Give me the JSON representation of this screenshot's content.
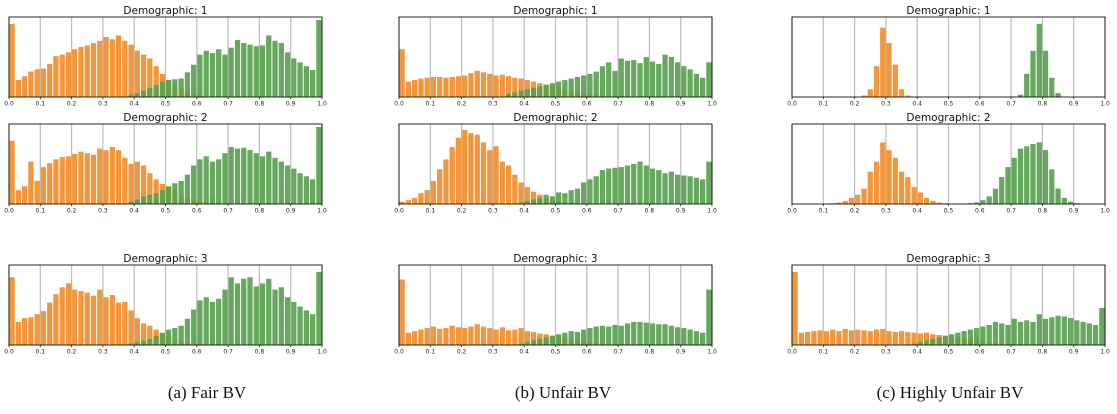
{
  "colors": {
    "orange": "#f28e2b",
    "green": "#59a14f"
  },
  "captions": [
    "(a) Fair BV",
    "(b) Unfair BV",
    "(c) Highly Unfair BV"
  ],
  "chart_data": [
    {
      "type": "bar",
      "title": "Demographic: 1",
      "xlim": [
        0,
        1
      ],
      "xticks": [
        "0.0",
        "0.1",
        "0.2",
        "0.3",
        "0.4",
        "0.5",
        "0.6",
        "0.7",
        "0.8",
        "0.9",
        "1.0"
      ],
      "series": [
        {
          "color": "orange",
          "values": [
            0.95,
            0.22,
            0.27,
            0.33,
            0.36,
            0.37,
            0.43,
            0.53,
            0.55,
            0.58,
            0.62,
            0.65,
            0.67,
            0.7,
            0.73,
            0.78,
            0.75,
            0.8,
            0.73,
            0.68,
            0.6,
            0.55,
            0.5,
            0.4,
            0.3,
            0.22,
            0.15,
            0.12,
            0.08,
            0.04,
            0.02,
            0.01,
            0,
            0,
            0,
            0,
            0,
            0,
            0,
            0,
            0,
            0,
            0,
            0,
            0,
            0,
            0,
            0,
            0,
            0
          ]
        },
        {
          "color": "green",
          "values": [
            0,
            0,
            0,
            0,
            0,
            0,
            0,
            0,
            0,
            0,
            0,
            0,
            0,
            0,
            0,
            0,
            0,
            0,
            0,
            0.03,
            0.05,
            0.08,
            0.12,
            0.16,
            0.2,
            0.22,
            0.23,
            0.24,
            0.32,
            0.42,
            0.55,
            0.6,
            0.57,
            0.62,
            0.55,
            0.64,
            0.74,
            0.7,
            0.68,
            0.66,
            0.67,
            0.8,
            0.73,
            0.7,
            0.58,
            0.5,
            0.45,
            0.4,
            0.35,
            1.0
          ]
        }
      ]
    },
    {
      "type": "bar",
      "title": "Demographic: 1",
      "xlim": [
        0,
        1
      ],
      "xticks": [
        "0.0",
        "0.1",
        "0.2",
        "0.3",
        "0.4",
        "0.5",
        "0.6",
        "0.7",
        "0.8",
        "0.9",
        "1.0"
      ],
      "series": [
        {
          "color": "orange",
          "values": [
            0.62,
            0.2,
            0.22,
            0.24,
            0.25,
            0.26,
            0.26,
            0.25,
            0.26,
            0.27,
            0.28,
            0.31,
            0.34,
            0.32,
            0.3,
            0.28,
            0.29,
            0.27,
            0.25,
            0.24,
            0.22,
            0.2,
            0.18,
            0.16,
            0.14,
            0.12,
            0.1,
            0.08,
            0.06,
            0.05,
            0.04,
            0.03,
            0.02,
            0.01,
            0.01,
            0,
            0,
            0,
            0,
            0,
            0,
            0,
            0,
            0,
            0,
            0,
            0,
            0,
            0,
            0
          ]
        },
        {
          "color": "green",
          "values": [
            0,
            0,
            0,
            0,
            0,
            0,
            0,
            0,
            0,
            0,
            0,
            0,
            0,
            0,
            0,
            0,
            0,
            0.04,
            0.06,
            0.08,
            0.1,
            0.12,
            0.14,
            0.16,
            0.18,
            0.2,
            0.22,
            0.24,
            0.26,
            0.28,
            0.3,
            0.33,
            0.4,
            0.45,
            0.34,
            0.5,
            0.47,
            0.48,
            0.44,
            0.52,
            0.46,
            0.43,
            0.55,
            0.52,
            0.45,
            0.4,
            0.36,
            0.3,
            0.25,
            0.45
          ]
        }
      ]
    },
    {
      "type": "bar",
      "title": "Demographic: 1",
      "xlim": [
        0,
        1
      ],
      "xticks": [
        "0.0",
        "0.1",
        "0.2",
        "0.3",
        "0.4",
        "0.5",
        "0.6",
        "0.7",
        "0.8",
        "0.9",
        "1.0"
      ],
      "series": [
        {
          "color": "orange",
          "values": [
            0,
            0,
            0,
            0,
            0,
            0,
            0,
            0,
            0,
            0,
            0,
            0.02,
            0.1,
            0.4,
            0.9,
            0.7,
            0.42,
            0.1,
            0.02,
            0,
            0,
            0,
            0,
            0,
            0,
            0,
            0,
            0,
            0,
            0,
            0,
            0,
            0,
            0,
            0,
            0,
            0,
            0,
            0,
            0,
            0,
            0,
            0,
            0,
            0,
            0,
            0,
            0,
            0,
            0
          ]
        },
        {
          "color": "green",
          "values": [
            0,
            0,
            0,
            0,
            0,
            0,
            0,
            0,
            0,
            0,
            0,
            0,
            0,
            0,
            0,
            0,
            0,
            0,
            0,
            0,
            0,
            0,
            0,
            0,
            0,
            0,
            0,
            0,
            0,
            0,
            0,
            0,
            0,
            0,
            0,
            0,
            0.03,
            0.3,
            0.6,
            0.95,
            0.6,
            0.25,
            0.05,
            0,
            0,
            0,
            0,
            0,
            0,
            0
          ]
        }
      ]
    },
    {
      "type": "bar",
      "title": "Demographic: 2",
      "xlim": [
        0,
        1
      ],
      "xticks": [
        "0.0",
        "0.1",
        "0.2",
        "0.3",
        "0.4",
        "0.5",
        "0.6",
        "0.7",
        "0.8",
        "0.9",
        "1.0"
      ],
      "series": [
        {
          "color": "orange",
          "values": [
            0.82,
            0.18,
            0.23,
            0.55,
            0.3,
            0.48,
            0.53,
            0.58,
            0.61,
            0.62,
            0.65,
            0.68,
            0.66,
            0.64,
            0.72,
            0.7,
            0.74,
            0.7,
            0.6,
            0.52,
            0.55,
            0.5,
            0.4,
            0.32,
            0.26,
            0.22,
            0.18,
            0.12,
            0.08,
            0.05,
            0.03,
            0.02,
            0.01,
            0,
            0,
            0,
            0,
            0,
            0,
            0,
            0,
            0,
            0,
            0,
            0,
            0,
            0,
            0,
            0,
            0
          ]
        },
        {
          "color": "green",
          "values": [
            0,
            0,
            0,
            0,
            0,
            0,
            0,
            0,
            0,
            0,
            0,
            0,
            0,
            0,
            0,
            0,
            0,
            0,
            0,
            0.03,
            0.06,
            0.1,
            0.12,
            0.14,
            0.18,
            0.23,
            0.27,
            0.3,
            0.38,
            0.5,
            0.58,
            0.62,
            0.55,
            0.58,
            0.66,
            0.74,
            0.72,
            0.73,
            0.7,
            0.66,
            0.62,
            0.68,
            0.6,
            0.55,
            0.5,
            0.46,
            0.4,
            0.36,
            0.32,
            1.0
          ]
        }
      ]
    },
    {
      "type": "bar",
      "title": "Demographic: 2",
      "xlim": [
        0,
        1
      ],
      "xticks": [
        "0.0",
        "0.1",
        "0.2",
        "0.3",
        "0.4",
        "0.5",
        "0.6",
        "0.7",
        "0.8",
        "0.9",
        "1.0"
      ],
      "series": [
        {
          "color": "orange",
          "values": [
            0.03,
            0.05,
            0.08,
            0.14,
            0.18,
            0.3,
            0.45,
            0.58,
            0.74,
            0.86,
            0.96,
            0.92,
            0.9,
            0.8,
            0.7,
            0.75,
            0.55,
            0.5,
            0.38,
            0.28,
            0.22,
            0.16,
            0.12,
            0.08,
            0.06,
            0.04,
            0.03,
            0.02,
            0.01,
            0,
            0,
            0,
            0,
            0,
            0,
            0,
            0,
            0,
            0,
            0,
            0,
            0,
            0,
            0,
            0,
            0,
            0,
            0,
            0,
            0
          ]
        },
        {
          "color": "green",
          "values": [
            0,
            0,
            0,
            0,
            0,
            0,
            0,
            0,
            0,
            0,
            0,
            0,
            0,
            0,
            0,
            0,
            0,
            0,
            0,
            0.02,
            0.04,
            0.06,
            0.08,
            0.12,
            0.1,
            0.15,
            0.14,
            0.18,
            0.2,
            0.28,
            0.32,
            0.36,
            0.44,
            0.46,
            0.47,
            0.48,
            0.5,
            0.52,
            0.55,
            0.5,
            0.46,
            0.44,
            0.4,
            0.42,
            0.38,
            0.37,
            0.36,
            0.34,
            0.32,
            0.55
          ]
        }
      ]
    },
    {
      "type": "bar",
      "title": "Demographic: 2",
      "xlim": [
        0,
        1
      ],
      "xticks": [
        "0.0",
        "0.1",
        "0.2",
        "0.3",
        "0.4",
        "0.5",
        "0.6",
        "0.7",
        "0.8",
        "0.9",
        "1.0"
      ],
      "series": [
        {
          "color": "orange",
          "values": [
            0,
            0,
            0,
            0,
            0,
            0,
            0.01,
            0.02,
            0.04,
            0.08,
            0.12,
            0.2,
            0.42,
            0.55,
            0.8,
            0.7,
            0.6,
            0.42,
            0.35,
            0.22,
            0.15,
            0.08,
            0.04,
            0.02,
            0.01,
            0,
            0,
            0,
            0,
            0,
            0,
            0,
            0,
            0,
            0,
            0,
            0,
            0,
            0,
            0,
            0,
            0,
            0,
            0,
            0,
            0,
            0,
            0,
            0,
            0
          ]
        },
        {
          "color": "green",
          "values": [
            0,
            0,
            0,
            0,
            0,
            0,
            0,
            0,
            0,
            0,
            0,
            0,
            0,
            0,
            0,
            0,
            0,
            0,
            0,
            0,
            0,
            0,
            0,
            0,
            0,
            0,
            0,
            0,
            0.01,
            0.02,
            0.05,
            0.1,
            0.2,
            0.35,
            0.48,
            0.6,
            0.72,
            0.75,
            0.78,
            0.8,
            0.7,
            0.45,
            0.2,
            0.08,
            0.03,
            0.01,
            0,
            0,
            0,
            0
          ]
        }
      ]
    },
    {
      "type": "bar",
      "title": "Demographic: 3",
      "xlim": [
        0,
        1
      ],
      "xticks": [
        "0.0",
        "0.1",
        "0.2",
        "0.3",
        "0.4",
        "0.5",
        "0.6",
        "0.7",
        "0.8",
        "0.9",
        "1.0"
      ],
      "series": [
        {
          "color": "orange",
          "values": [
            0.88,
            0.3,
            0.35,
            0.36,
            0.4,
            0.44,
            0.55,
            0.66,
            0.75,
            0.8,
            0.72,
            0.7,
            0.68,
            0.64,
            0.72,
            0.62,
            0.65,
            0.55,
            0.56,
            0.45,
            0.35,
            0.28,
            0.25,
            0.2,
            0.15,
            0.12,
            0.08,
            0.05,
            0.03,
            0.02,
            0.01,
            0,
            0,
            0,
            0,
            0,
            0,
            0,
            0,
            0,
            0,
            0,
            0,
            0,
            0,
            0,
            0,
            0,
            0,
            0
          ]
        },
        {
          "color": "green",
          "values": [
            0,
            0,
            0,
            0,
            0,
            0,
            0,
            0,
            0,
            0,
            0,
            0,
            0,
            0,
            0,
            0,
            0,
            0,
            0,
            0.02,
            0.04,
            0.06,
            0.08,
            0.12,
            0.16,
            0.2,
            0.22,
            0.25,
            0.34,
            0.46,
            0.58,
            0.62,
            0.56,
            0.6,
            0.72,
            0.88,
            0.8,
            0.86,
            0.88,
            0.76,
            0.8,
            0.86,
            0.72,
            0.75,
            0.62,
            0.56,
            0.5,
            0.45,
            0.4,
            0.95
          ]
        }
      ]
    },
    {
      "type": "bar",
      "title": "Demographic: 3",
      "xlim": [
        0,
        1
      ],
      "xticks": [
        "0.0",
        "0.1",
        "0.2",
        "0.3",
        "0.4",
        "0.5",
        "0.6",
        "0.7",
        "0.8",
        "0.9",
        "1.0"
      ],
      "series": [
        {
          "color": "orange",
          "values": [
            0.85,
            0.16,
            0.18,
            0.2,
            0.22,
            0.24,
            0.21,
            0.22,
            0.25,
            0.23,
            0.22,
            0.24,
            0.27,
            0.24,
            0.22,
            0.2,
            0.23,
            0.19,
            0.2,
            0.22,
            0.18,
            0.17,
            0.15,
            0.14,
            0.12,
            0.11,
            0.1,
            0.08,
            0.06,
            0.05,
            0.04,
            0.03,
            0.02,
            0.01,
            0.01,
            0,
            0,
            0,
            0,
            0,
            0,
            0,
            0,
            0,
            0,
            0,
            0,
            0,
            0,
            0
          ]
        },
        {
          "color": "green",
          "values": [
            0,
            0,
            0,
            0,
            0,
            0,
            0,
            0,
            0,
            0,
            0,
            0,
            0,
            0,
            0,
            0,
            0,
            0,
            0,
            0.02,
            0.04,
            0.06,
            0.08,
            0.1,
            0.12,
            0.14,
            0.16,
            0.18,
            0.17,
            0.2,
            0.22,
            0.24,
            0.25,
            0.24,
            0.26,
            0.25,
            0.28,
            0.3,
            0.3,
            0.29,
            0.28,
            0.27,
            0.27,
            0.25,
            0.23,
            0.22,
            0.2,
            0.18,
            0.16,
            0.72
          ]
        }
      ]
    },
    {
      "type": "bar",
      "title": "Demographic: 3",
      "xlim": [
        0,
        1
      ],
      "xticks": [
        "0.0",
        "0.1",
        "0.2",
        "0.3",
        "0.4",
        "0.5",
        "0.6",
        "0.7",
        "0.8",
        "0.9",
        "1.0"
      ],
      "series": [
        {
          "color": "orange",
          "values": [
            0.95,
            0.16,
            0.17,
            0.18,
            0.19,
            0.18,
            0.2,
            0.18,
            0.21,
            0.19,
            0.2,
            0.19,
            0.18,
            0.2,
            0.21,
            0.18,
            0.17,
            0.18,
            0.17,
            0.16,
            0.15,
            0.16,
            0.14,
            0.13,
            0.12,
            0.11,
            0.1,
            0.08,
            0.07,
            0.06,
            0.05,
            0.04,
            0.03,
            0.02,
            0.02,
            0.01,
            0,
            0,
            0,
            0,
            0,
            0,
            0,
            0,
            0,
            0,
            0,
            0,
            0,
            0
          ]
        },
        {
          "color": "green",
          "values": [
            0,
            0,
            0,
            0,
            0,
            0,
            0,
            0,
            0,
            0,
            0,
            0,
            0,
            0,
            0,
            0,
            0,
            0,
            0,
            0.02,
            0.04,
            0.06,
            0.08,
            0.1,
            0.12,
            0.14,
            0.16,
            0.18,
            0.2,
            0.22,
            0.24,
            0.26,
            0.3,
            0.28,
            0.26,
            0.34,
            0.3,
            0.32,
            0.3,
            0.4,
            0.34,
            0.36,
            0.38,
            0.37,
            0.35,
            0.32,
            0.3,
            0.28,
            0.26,
            0.48
          ]
        }
      ]
    }
  ]
}
